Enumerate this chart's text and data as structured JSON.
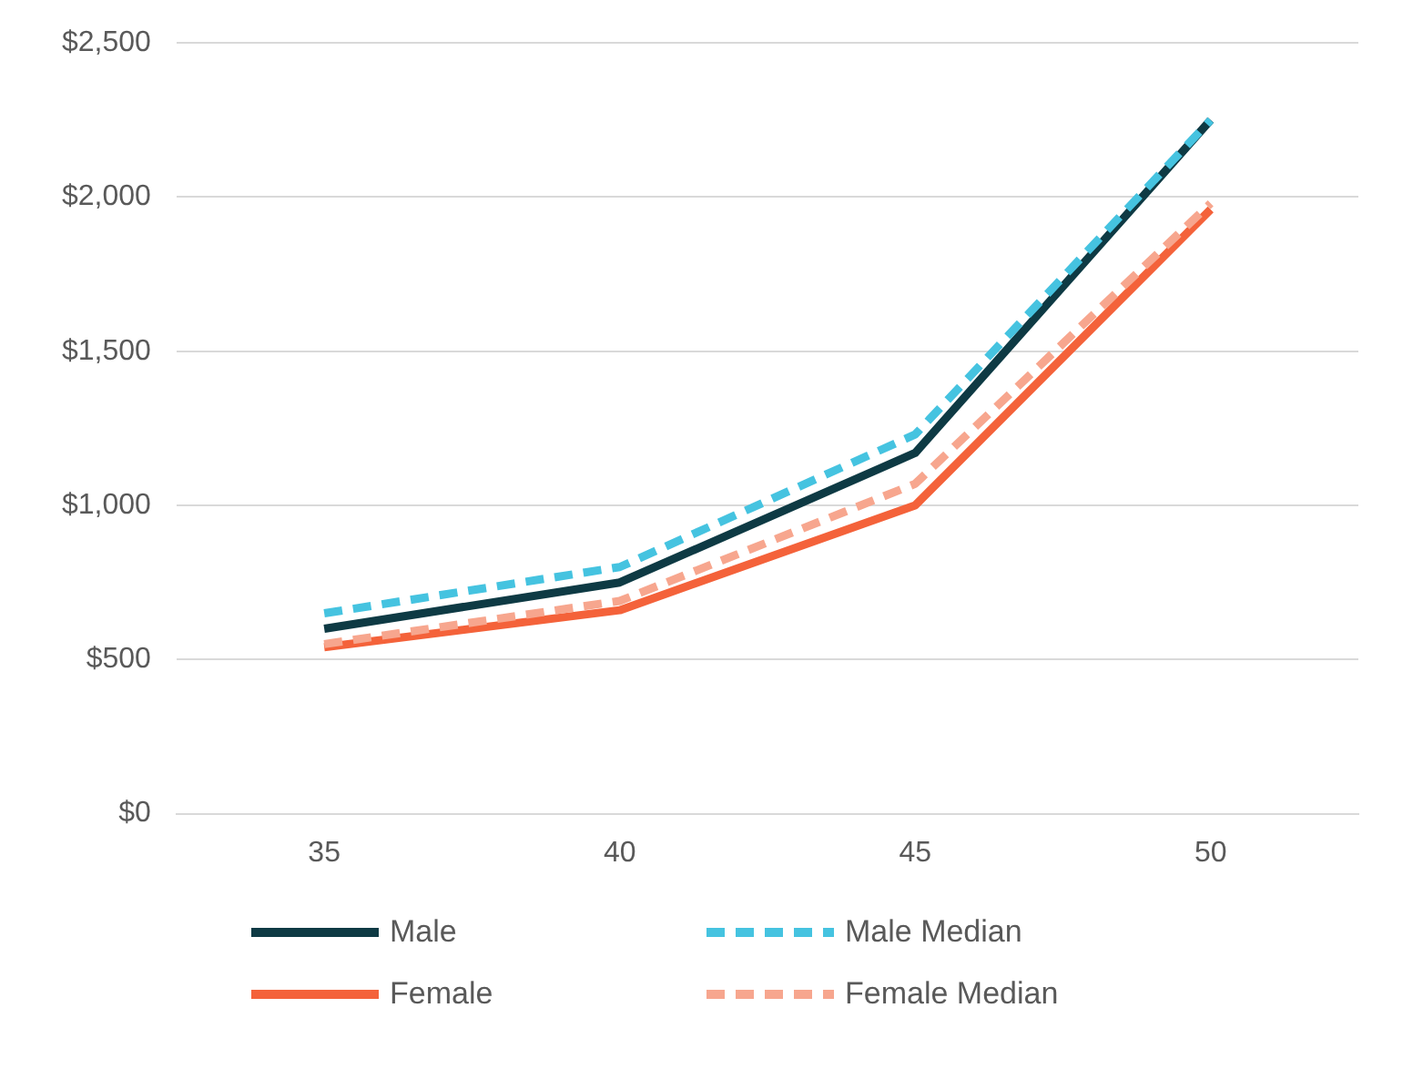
{
  "chart_data": {
    "type": "line",
    "categories": [
      "35",
      "40",
      "45",
      "50"
    ],
    "series": [
      {
        "name": "Male",
        "color": "#0e3a44",
        "values": [
          600,
          750,
          1170,
          2250
        ],
        "line_style": "solid"
      },
      {
        "name": "Male Median",
        "color": "#45c3e0",
        "values": [
          650,
          800,
          1230,
          2250
        ],
        "line_style": "dashed"
      },
      {
        "name": "Female",
        "color": "#f4623a",
        "values": [
          540,
          660,
          1000,
          1960
        ],
        "line_style": "solid"
      },
      {
        "name": "Female Median",
        "color": "#f7a68e",
        "values": [
          550,
          690,
          1070,
          1980
        ],
        "line_style": "dashed"
      }
    ],
    "ylim": [
      0,
      2500
    ],
    "yticks": [
      {
        "value": 0,
        "label": "$0"
      },
      {
        "value": 500,
        "label": "$500"
      },
      {
        "value": 1000,
        "label": "$1,000"
      },
      {
        "value": 1500,
        "label": "$1,500"
      },
      {
        "value": 2000,
        "label": "$2,000"
      },
      {
        "value": 2500,
        "label": "$2,500"
      }
    ],
    "grid": "y",
    "legend": "bottom",
    "marker": "none"
  }
}
